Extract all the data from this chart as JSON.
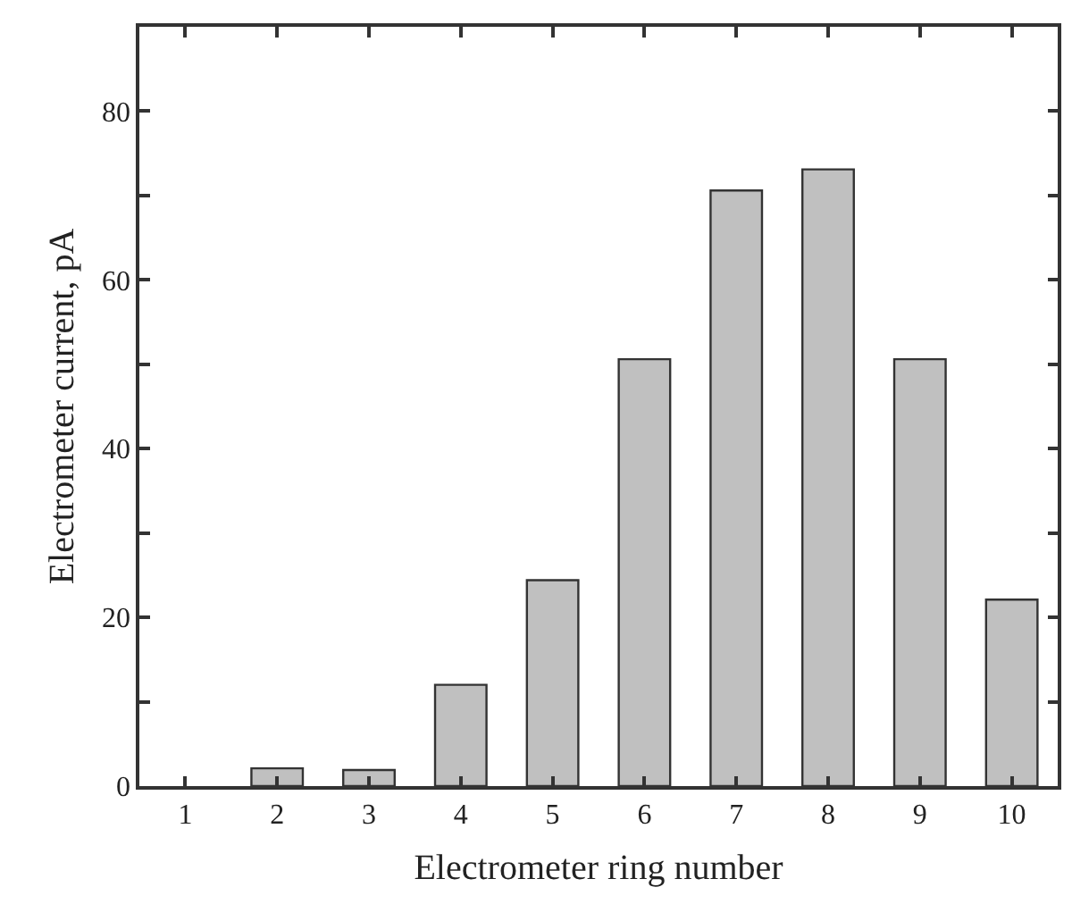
{
  "chart_data": {
    "type": "bar",
    "xlabel": "Electrometer ring number",
    "ylabel": "Electrometer current, pA",
    "categories": [
      "1",
      "2",
      "3",
      "4",
      "5",
      "6",
      "7",
      "8",
      "9",
      "10"
    ],
    "values": [
      null,
      2.1,
      1.9,
      12.0,
      24.4,
      50.6,
      70.6,
      73.1,
      50.6,
      22.1
    ],
    "color": "#c0c0c0",
    "ylim": [
      0,
      90
    ],
    "yticks": [
      0,
      {
        "value": 10,
        "label": null
      },
      20,
      {
        "value": 30,
        "label": null
      },
      40,
      {
        "value": 50,
        "label": null
      },
      60,
      {
        "value": 70,
        "label": null
      },
      80
    ]
  }
}
